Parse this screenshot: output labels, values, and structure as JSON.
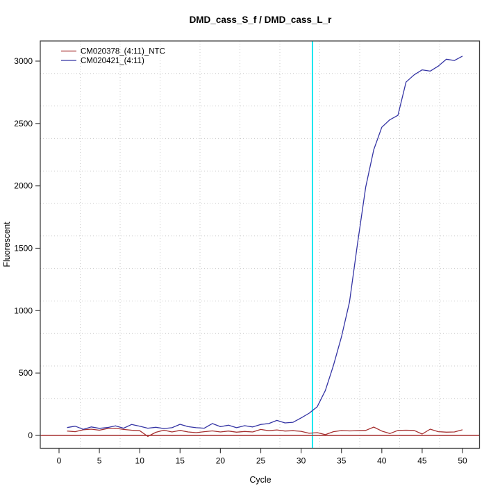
{
  "title": "DMD_cass_S_f / DMD_cass_L_r",
  "axes": {
    "x": {
      "label": "Cycle",
      "ticks": [
        0,
        5,
        10,
        15,
        20,
        25,
        30,
        35,
        40,
        45,
        50
      ]
    },
    "y": {
      "label": "Fluorescent",
      "ticks": [
        0,
        500,
        1000,
        1500,
        2000,
        2500,
        3000
      ]
    }
  },
  "legend": {
    "items": [
      {
        "label": "CM020378_(4:11)_NTC",
        "color": "#A52F2F"
      },
      {
        "label": "CM020421_(4:11)",
        "color": "#3434A4"
      }
    ]
  },
  "colors": {
    "grid": "#C9C9C9",
    "frame": "#404040",
    "threshold_vline": "#00E5EE",
    "zero_hline": "#A52F2F"
  },
  "chart_data": {
    "type": "line",
    "title": "DMD_cass_S_f / DMD_cass_L_r",
    "xlabel": "Cycle",
    "ylabel": "Fluorescent",
    "xlim": [
      -2.3,
      52.3
    ],
    "ylim": [
      -105,
      3160
    ],
    "grid": true,
    "legend_position": "top-left",
    "threshold_cycle_vline_x": 31.4,
    "baseline_hline_y": 0,
    "x": [
      1,
      2,
      3,
      4,
      5,
      6,
      7,
      8,
      9,
      10,
      11,
      12,
      13,
      14,
      15,
      16,
      17,
      18,
      19,
      20,
      21,
      22,
      23,
      24,
      25,
      26,
      27,
      28,
      29,
      30,
      31,
      32,
      33,
      34,
      35,
      36,
      37,
      38,
      39,
      40,
      41,
      42,
      43,
      44,
      45,
      46,
      47,
      48,
      49,
      50
    ],
    "series": [
      {
        "name": "CM020378_(4:11)_NTC",
        "color": "#A52F2F",
        "values": [
          35,
          30,
          45,
          50,
          42,
          55,
          58,
          48,
          42,
          38,
          -8,
          25,
          42,
          28,
          40,
          28,
          22,
          30,
          36,
          28,
          35,
          26,
          32,
          28,
          48,
          38,
          44,
          35,
          38,
          33,
          17,
          22,
          6,
          30,
          39,
          36,
          38,
          40,
          67,
          35,
          15,
          40,
          42,
          40,
          11,
          50,
          30,
          26,
          28,
          45
        ]
      },
      {
        "name": "CM020421_(4:11)",
        "color": "#3434A4",
        "values": [
          63,
          74,
          49,
          68,
          57,
          63,
          77,
          58,
          88,
          74,
          58,
          65,
          55,
          62,
          89,
          70,
          62,
          58,
          95,
          70,
          82,
          62,
          78,
          68,
          88,
          95,
          120,
          100,
          105,
          140,
          178,
          230,
          360,
          560,
          790,
          1070,
          1540,
          1990,
          2290,
          2470,
          2530,
          2565,
          2832,
          2890,
          2930,
          2920,
          2960,
          3015,
          3005,
          3040
        ]
      }
    ]
  }
}
